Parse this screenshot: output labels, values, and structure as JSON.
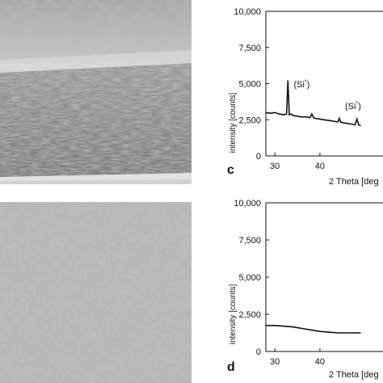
{
  "panels": {
    "c": {
      "letter": "c",
      "ylabel": "intensity [counts]",
      "xlabel": "2 Theta [deg",
      "annotations": [
        "(Si*)",
        "(Si*)"
      ]
    },
    "d": {
      "letter": "d",
      "ylabel": "intensity [counts]",
      "xlabel": "2 Theta [deg"
    }
  },
  "chart_data": [
    {
      "type": "line",
      "panel": "c",
      "xlabel": "2 Theta [deg",
      "ylabel": "intensity [counts]",
      "xlim": [
        28,
        54
      ],
      "ylim": [
        0,
        10000
      ],
      "xticks": [
        30,
        40
      ],
      "yticks": [
        "0",
        "2,500",
        "5,000",
        "7,500",
        "10,000"
      ],
      "ytick_values": [
        0,
        2500,
        5000,
        7500,
        10000
      ],
      "series": [
        {
          "x": [
            28,
            29,
            30,
            31,
            32,
            32.6,
            32.9,
            33.2,
            33.6,
            34,
            35,
            36,
            37,
            37.8,
            38.2,
            38.6,
            39,
            40,
            41,
            42,
            43,
            44,
            44.3,
            44.6,
            45,
            46,
            47,
            47.8,
            48.2,
            48.6,
            49
          ],
          "y": [
            3000,
            2950,
            3000,
            2900,
            2850,
            2900,
            5200,
            2850,
            2900,
            2800,
            2750,
            2700,
            2700,
            2650,
            2900,
            2650,
            2600,
            2550,
            2500,
            2450,
            2400,
            2350,
            2600,
            2350,
            2300,
            2250,
            2200,
            2150,
            2550,
            2150,
            2100
          ]
        }
      ],
      "annotations": [
        {
          "text": "(Si*)",
          "x": 33.1
        },
        {
          "text": "(Si*)",
          "x": 44.5
        }
      ]
    },
    {
      "type": "line",
      "panel": "d",
      "xlabel": "2 Theta [deg",
      "ylabel": "intensity [counts]",
      "xlim": [
        28,
        54
      ],
      "ylim": [
        0,
        10000
      ],
      "xticks": [
        30,
        40
      ],
      "yticks": [
        "0",
        "2,500",
        "5,000",
        "7,500",
        "10,000"
      ],
      "ytick_values": [
        0,
        2500,
        5000,
        7500,
        10000
      ],
      "series": [
        {
          "x": [
            28,
            30,
            32,
            34,
            36,
            38,
            40,
            42,
            44,
            46,
            48,
            49
          ],
          "y": [
            1750,
            1750,
            1700,
            1650,
            1550,
            1450,
            1350,
            1300,
            1250,
            1250,
            1250,
            1250
          ]
        }
      ]
    }
  ]
}
